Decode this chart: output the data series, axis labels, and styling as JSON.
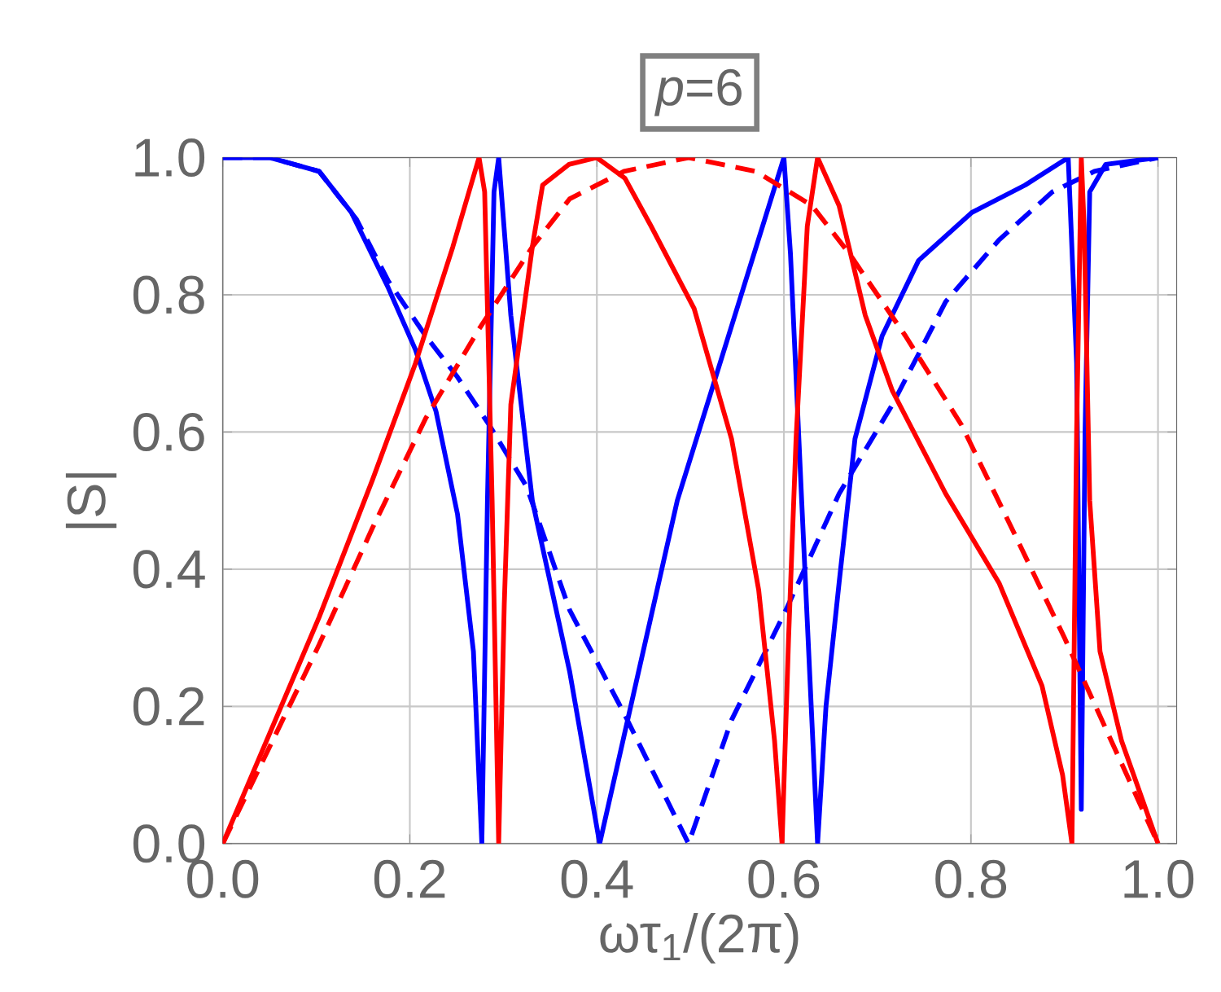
{
  "chart_data": {
    "type": "line",
    "title": "*p*=6",
    "xlabel": "ωτ$_{1}$/(2π)",
    "ylabel": "|S|",
    "xlim": [
      0,
      1.02
    ],
    "ylim": [
      0,
      1.0
    ],
    "xticks": [
      {
        "value": 0,
        "label": "0.0"
      },
      0.2,
      0.4,
      0.6,
      0.8,
      {
        "value": 1,
        "label": "1.0"
      }
    ],
    "yticks": [
      {
        "value": 0,
        "label": "0.0"
      },
      0.2,
      0.4,
      0.6,
      0.8,
      {
        "value": 1,
        "label": "1.0"
      }
    ],
    "grid": true,
    "series": [
      {
        "color": "#0000ff",
        "line_style": "solid",
        "x": [
          0,
          0.05,
          0.103,
          0.1375,
          0.177,
          0.206,
          0.228,
          0.251,
          0.268,
          0.277,
          0.283,
          0.29,
          0.295,
          0.308,
          0.331,
          0.371,
          0.403,
          0.486,
          0.6,
          0.607,
          0.619,
          0.636,
          0.645,
          0.659,
          0.676,
          0.705,
          0.744,
          0.801,
          0.858,
          0.904,
          0.913,
          0.918,
          0.922,
          0.927,
          0.944,
          1.0
        ],
        "values": [
          1.0,
          1.0,
          0.98,
          0.92,
          0.81,
          0.72,
          0.63,
          0.48,
          0.28,
          0.0,
          0.5,
          0.95,
          1.0,
          0.77,
          0.5,
          0.25,
          0.0,
          0.5,
          1.0,
          0.86,
          0.5,
          0.0,
          0.2,
          0.38,
          0.59,
          0.74,
          0.85,
          0.92,
          0.96,
          1.0,
          0.7,
          0.05,
          0.6,
          0.95,
          0.99,
          1.0
        ]
      },
      {
        "color": "#0000ff",
        "line_style": "dashed",
        "x": [
          0,
          0.05,
          0.103,
          0.143,
          0.177,
          0.217,
          0.251,
          0.285,
          0.325,
          0.371,
          0.429,
          0.498,
          0.544,
          0.602,
          0.659,
          0.716,
          0.773,
          0.83,
          0.887,
          0.932,
          1.0
        ],
        "values": [
          1.0,
          1.0,
          0.98,
          0.91,
          0.82,
          0.74,
          0.68,
          0.61,
          0.52,
          0.34,
          0.19,
          0.0,
          0.18,
          0.34,
          0.51,
          0.64,
          0.79,
          0.88,
          0.95,
          0.98,
          1.0
        ]
      },
      {
        "color": "#ff0000",
        "line_style": "dashed",
        "x": [
          0,
          0.103,
          0.16,
          0.217,
          0.274,
          0.331,
          0.371,
          0.429,
          0.498,
          0.57,
          0.63,
          0.67,
          0.73,
          0.79,
          0.84,
          0.9,
          0.95,
          1.0
        ],
        "values": [
          0.0,
          0.29,
          0.46,
          0.62,
          0.75,
          0.87,
          0.94,
          0.98,
          1.0,
          0.98,
          0.93,
          0.86,
          0.74,
          0.61,
          0.47,
          0.3,
          0.15,
          0.0
        ]
      },
      {
        "color": "#ff0000",
        "line_style": "solid",
        "x": [
          0,
          0.103,
          0.16,
          0.206,
          0.246,
          0.274,
          0.28,
          0.288,
          0.295,
          0.301,
          0.308,
          0.331,
          0.342,
          0.37,
          0.4,
          0.43,
          0.458,
          0.504,
          0.544,
          0.573,
          0.59,
          0.598,
          0.605,
          0.613,
          0.625,
          0.636,
          0.659,
          0.687,
          0.716,
          0.773,
          0.83,
          0.876,
          0.898,
          0.908,
          0.913,
          0.918,
          0.921,
          0.927,
          0.938,
          0.961,
          1.0
        ],
        "values": [
          0.0,
          0.33,
          0.53,
          0.7,
          0.87,
          1.0,
          0.95,
          0.5,
          0.0,
          0.35,
          0.64,
          0.87,
          0.96,
          0.99,
          1.0,
          0.97,
          0.9,
          0.78,
          0.59,
          0.37,
          0.15,
          0.0,
          0.3,
          0.59,
          0.9,
          1.0,
          0.93,
          0.77,
          0.66,
          0.51,
          0.38,
          0.23,
          0.1,
          0.0,
          0.6,
          1.0,
          0.9,
          0.5,
          0.28,
          0.15,
          0.0
        ]
      }
    ]
  }
}
